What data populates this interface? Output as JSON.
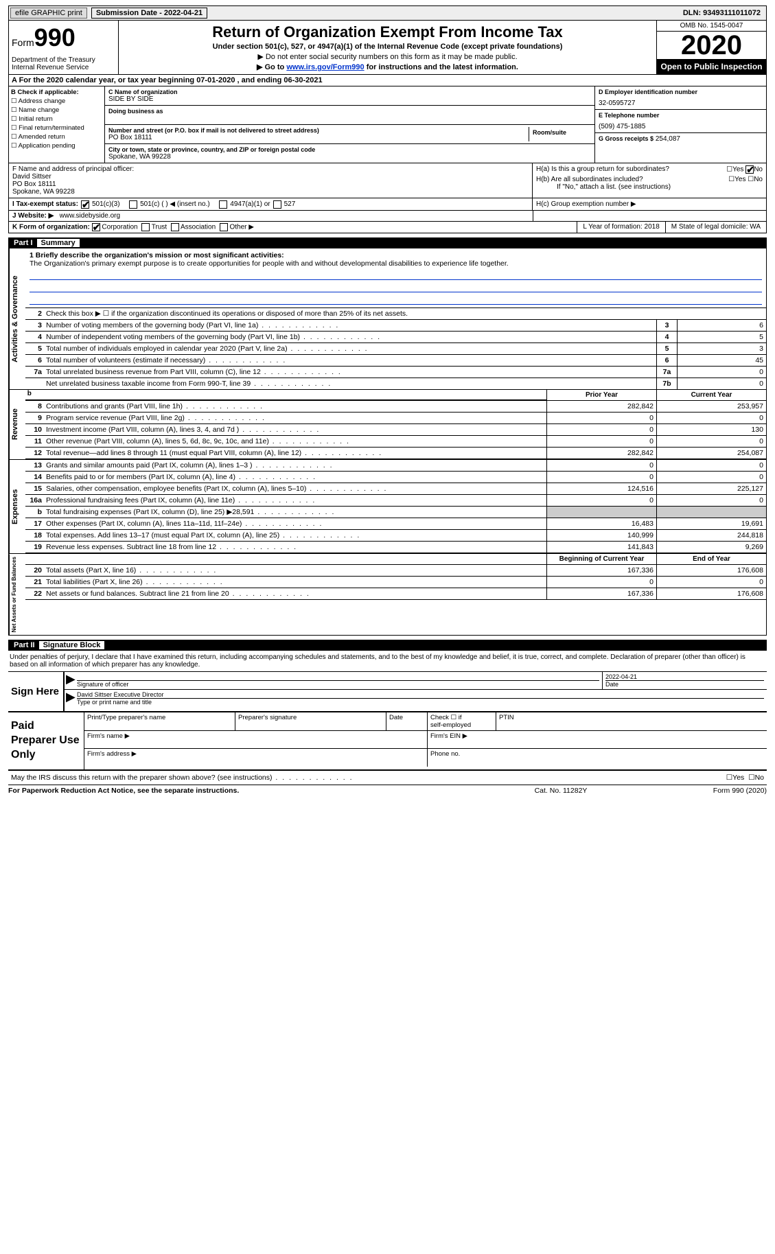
{
  "top": {
    "efile_btn": "efile GRAPHIC print",
    "sub_date": "Submission Date - 2022-04-21",
    "dln": "DLN: 93493111011072"
  },
  "hdr": {
    "form_word": "Form",
    "form_num": "990",
    "dept": "Department of the Treasury\nInternal Revenue Service",
    "title": "Return of Organization Exempt From Income Tax",
    "sub1": "Under section 501(c), 527, or 4947(a)(1) of the Internal Revenue Code (except private foundations)",
    "sub2a": "▶ Do not enter social security numbers on this form as it may be made public.",
    "sub2b_pre": "▶ Go to ",
    "sub2b_link": "www.irs.gov/Form990",
    "sub2b_post": " for instructions and the latest information.",
    "omb": "OMB No. 1545-0047",
    "year": "2020",
    "open": "Open to Public Inspection"
  },
  "period": "A For the 2020 calendar year, or tax year beginning 07-01-2020   , and ending 06-30-2021",
  "B": {
    "hdr": "B Check if applicable:",
    "items": [
      "☐ Address change",
      "☐ Name change",
      "☐ Initial return",
      "☐ Final return/terminated",
      "☐ Amended return",
      "☐ Application pending"
    ]
  },
  "C": {
    "name_lbl": "C Name of organization",
    "name": "SIDE BY SIDE",
    "dba_lbl": "Doing business as",
    "addr_lbl": "Number and street (or P.O. box if mail is not delivered to street address)",
    "room_lbl": "Room/suite",
    "addr": "PO Box 18111",
    "city_lbl": "City or town, state or province, country, and ZIP or foreign postal code",
    "city": "Spokane, WA  99228"
  },
  "D": {
    "lbl": "D Employer identification number",
    "val": "32-0595727"
  },
  "E": {
    "lbl": "E Telephone number",
    "val": "(509) 475-1885"
  },
  "G": {
    "lbl": "G Gross receipts $",
    "val": "254,087"
  },
  "F": {
    "lbl": "F  Name and address of principal officer:",
    "name": "David Sittser",
    "addr1": "PO Box 18111",
    "addr2": "Spokane, WA  99228"
  },
  "H": {
    "a": "H(a)  Is this a group return for subordinates?",
    "a_yes": "Yes",
    "a_no": "No",
    "b": "H(b)  Are all subordinates included?",
    "b_note": "If \"No,\" attach a list. (see instructions)",
    "c": "H(c)  Group exemption number ▶"
  },
  "I": {
    "lbl": "I   Tax-exempt status:",
    "o1": "501(c)(3)",
    "o2": "501(c) (  ) ◀ (insert no.)",
    "o3": "4947(a)(1) or",
    "o4": "527"
  },
  "J": {
    "lbl": "J   Website: ▶",
    "val": "www.sidebyside.org"
  },
  "K": {
    "lbl": "K Form of organization:",
    "o1": "Corporation",
    "o2": "Trust",
    "o3": "Association",
    "o4": "Other ▶"
  },
  "L": "L Year of formation: 2018",
  "M": "M State of legal domicile: WA",
  "part1": {
    "num": "Part I",
    "title": "Summary"
  },
  "p1": {
    "l1_lbl": "1  Briefly describe the organization's mission or most significant activities:",
    "l1_txt": "The Organization's primary exempt purpose is to create opportunities for people with and without developmental disabilities to experience life together.",
    "l2": "Check this box ▶ ☐  if the organization discontinued its operations or disposed of more than 25% of its net assets.",
    "lines_gov": [
      {
        "n": "3",
        "d": "Number of voting members of the governing body (Part VI, line 1a)",
        "b": "3",
        "v": "6"
      },
      {
        "n": "4",
        "d": "Number of independent voting members of the governing body (Part VI, line 1b)",
        "b": "4",
        "v": "5"
      },
      {
        "n": "5",
        "d": "Total number of individuals employed in calendar year 2020 (Part V, line 2a)",
        "b": "5",
        "v": "3"
      },
      {
        "n": "6",
        "d": "Total number of volunteers (estimate if necessary)",
        "b": "6",
        "v": "45"
      },
      {
        "n": "7a",
        "d": "Total unrelated business revenue from Part VIII, column (C), line 12",
        "b": "7a",
        "v": "0"
      },
      {
        "n": "",
        "d": "Net unrelated business taxable income from Form 990-T, line 39",
        "b": "7b",
        "v": "0"
      }
    ],
    "col_prior": "Prior Year",
    "col_curr": "Current Year",
    "rev": [
      {
        "n": "8",
        "d": "Contributions and grants (Part VIII, line 1h)",
        "p": "282,842",
        "c": "253,957"
      },
      {
        "n": "9",
        "d": "Program service revenue (Part VIII, line 2g)",
        "p": "0",
        "c": "0"
      },
      {
        "n": "10",
        "d": "Investment income (Part VIII, column (A), lines 3, 4, and 7d )",
        "p": "0",
        "c": "130"
      },
      {
        "n": "11",
        "d": "Other revenue (Part VIII, column (A), lines 5, 6d, 8c, 9c, 10c, and 11e)",
        "p": "0",
        "c": "0"
      },
      {
        "n": "12",
        "d": "Total revenue—add lines 8 through 11 (must equal Part VIII, column (A), line 12)",
        "p": "282,842",
        "c": "254,087"
      }
    ],
    "exp": [
      {
        "n": "13",
        "d": "Grants and similar amounts paid (Part IX, column (A), lines 1–3 )",
        "p": "0",
        "c": "0"
      },
      {
        "n": "14",
        "d": "Benefits paid to or for members (Part IX, column (A), line 4)",
        "p": "0",
        "c": "0"
      },
      {
        "n": "15",
        "d": "Salaries, other compensation, employee benefits (Part IX, column (A), lines 5–10)",
        "p": "124,516",
        "c": "225,127"
      },
      {
        "n": "16a",
        "d": "Professional fundraising fees (Part IX, column (A), line 11e)",
        "p": "0",
        "c": "0"
      },
      {
        "n": "b",
        "d": "Total fundraising expenses (Part IX, column (D), line 25) ▶28,591",
        "p": "",
        "c": "",
        "shade": true
      },
      {
        "n": "17",
        "d": "Other expenses (Part IX, column (A), lines 11a–11d, 11f–24e)",
        "p": "16,483",
        "c": "19,691"
      },
      {
        "n": "18",
        "d": "Total expenses. Add lines 13–17 (must equal Part IX, column (A), line 25)",
        "p": "140,999",
        "c": "244,818"
      },
      {
        "n": "19",
        "d": "Revenue less expenses. Subtract line 18 from line 12",
        "p": "141,843",
        "c": "9,269"
      }
    ],
    "col_beg": "Beginning of Current Year",
    "col_end": "End of Year",
    "net": [
      {
        "n": "20",
        "d": "Total assets (Part X, line 16)",
        "p": "167,336",
        "c": "176,608"
      },
      {
        "n": "21",
        "d": "Total liabilities (Part X, line 26)",
        "p": "0",
        "c": "0"
      },
      {
        "n": "22",
        "d": "Net assets or fund balances. Subtract line 21 from line 20",
        "p": "167,336",
        "c": "176,608"
      }
    ]
  },
  "vtabs": {
    "gov": "Activities & Governance",
    "rev": "Revenue",
    "exp": "Expenses",
    "net": "Net Assets or Fund Balances"
  },
  "part2": {
    "num": "Part II",
    "title": "Signature Block"
  },
  "sig": {
    "decl": "Under penalties of perjury, I declare that I have examined this return, including accompanying schedules and statements, and to the best of my knowledge and belief, it is true, correct, and complete. Declaration of preparer (other than officer) is based on all information of which preparer has any knowledge.",
    "sign_here": "Sign Here",
    "sig_off": "Signature of officer",
    "date": "Date",
    "date_val": "2022-04-21",
    "name": "David Sittser  Executive Director",
    "type_lbl": "Type or print name and title"
  },
  "prep": {
    "lbl": "Paid Preparer Use Only",
    "h1": "Print/Type preparer's name",
    "h2": "Preparer's signature",
    "h3": "Date",
    "h4a": "Check ☐ if",
    "h4b": "self-employed",
    "h5": "PTIN",
    "firm_name": "Firm's name   ▶",
    "firm_ein": "Firm's EIN ▶",
    "firm_addr": "Firm's address ▶",
    "phone": "Phone no."
  },
  "discuss": {
    "txt": "May the IRS discuss this return with the preparer shown above? (see instructions)",
    "yes": "Yes",
    "no": "No"
  },
  "footer": {
    "l": "For Paperwork Reduction Act Notice, see the separate instructions.",
    "m": "Cat. No. 11282Y",
    "r": "Form 990 (2020)"
  }
}
